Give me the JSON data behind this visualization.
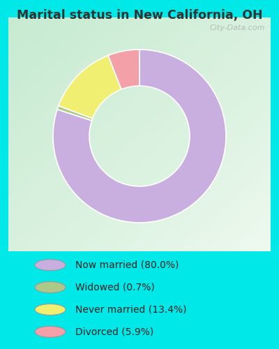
{
  "title": "Marital status in New California, OH",
  "slices": [
    80.0,
    0.7,
    13.4,
    5.9
  ],
  "colors": [
    "#c9aee0",
    "#adc98a",
    "#f0ef72",
    "#f4a0a8"
  ],
  "labels": [
    "Now married (80.0%)",
    "Widowed (0.7%)",
    "Never married (13.4%)",
    "Divorced (5.9%)"
  ],
  "legend_colors": [
    "#c9aee0",
    "#adc98a",
    "#f0ef72",
    "#f4a0a8"
  ],
  "background_cyan": "#00e8e8",
  "title_color": "#333333",
  "watermark": "City-Data.com",
  "donut_width": 0.42,
  "start_angle": 90
}
